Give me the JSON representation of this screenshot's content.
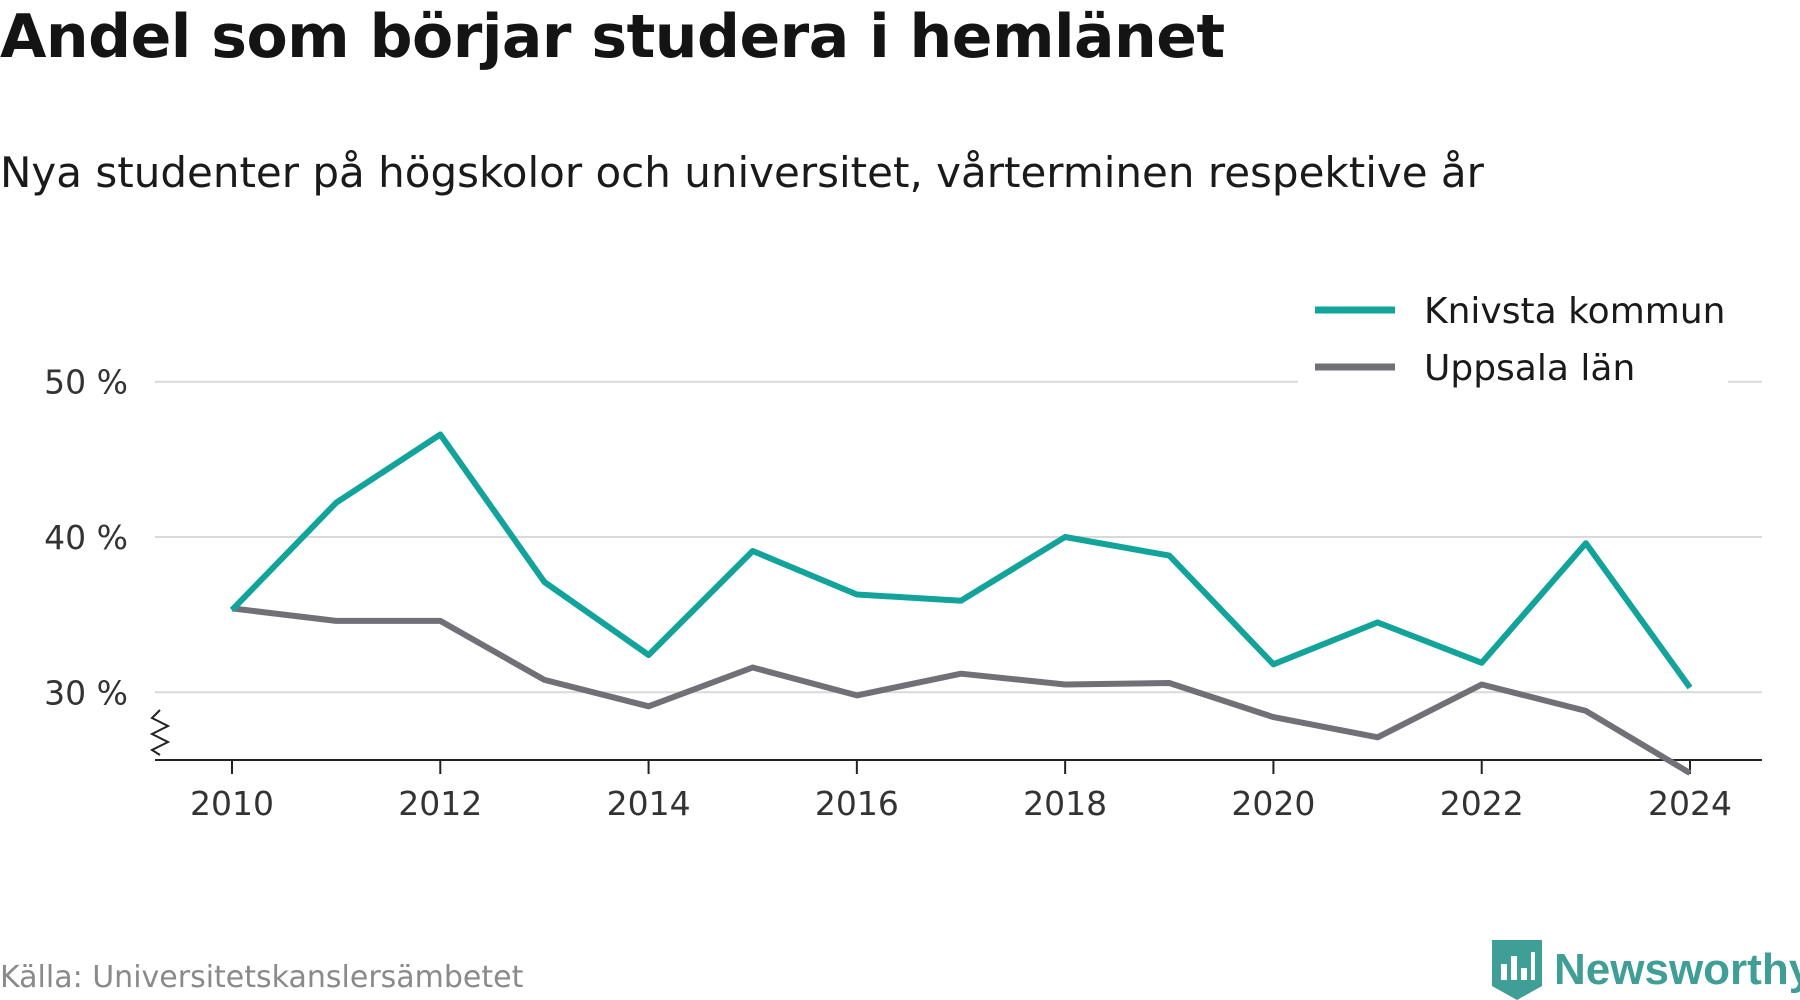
{
  "header": {
    "title": "Andel som börjar studera i hemlänet",
    "subtitle": "Nya studenter på högskolor och universitet, vårterminen respektive år"
  },
  "chart_data": {
    "type": "line",
    "title": "Andel som börjar studera i hemlänet",
    "subtitle": "Nya studenter på högskolor och universitet, vårterminen respektive år",
    "xlabel": "",
    "ylabel": "",
    "x": [
      2010,
      2011,
      2012,
      2013,
      2014,
      2015,
      2016,
      2017,
      2018,
      2019,
      2020,
      2021,
      2022,
      2023,
      2024
    ],
    "x_ticks": [
      "2010",
      "2012",
      "2014",
      "2016",
      "2018",
      "2020",
      "2022",
      "2024"
    ],
    "y_ticks": [
      "30 %",
      "40 %",
      "50 %"
    ],
    "y_tick_values": [
      30,
      40,
      50
    ],
    "ylim": [
      21,
      52
    ],
    "grid": "horizontal",
    "legend_position": "top-right",
    "series": [
      {
        "name": "Knivsta kommun",
        "color": "#12a39a",
        "values": [
          35.3,
          42.2,
          46.6,
          37.1,
          32.4,
          39.1,
          36.3,
          35.9,
          40.0,
          38.8,
          31.8,
          34.5,
          31.9,
          39.6,
          30.3
        ]
      },
      {
        "name": "Uppsala län",
        "color": "#717076",
        "values": [
          35.4,
          34.6,
          34.6,
          30.8,
          29.1,
          31.6,
          29.8,
          31.2,
          30.5,
          30.6,
          28.4,
          27.1,
          30.5,
          28.8,
          24.8
        ]
      }
    ]
  },
  "footer": {
    "source": "Källa: Universitetskanslersämbetet",
    "brand": "Newsworthy",
    "brand_icon": "newsworthy-logo-icon",
    "brand_color": "#3f9e95"
  }
}
